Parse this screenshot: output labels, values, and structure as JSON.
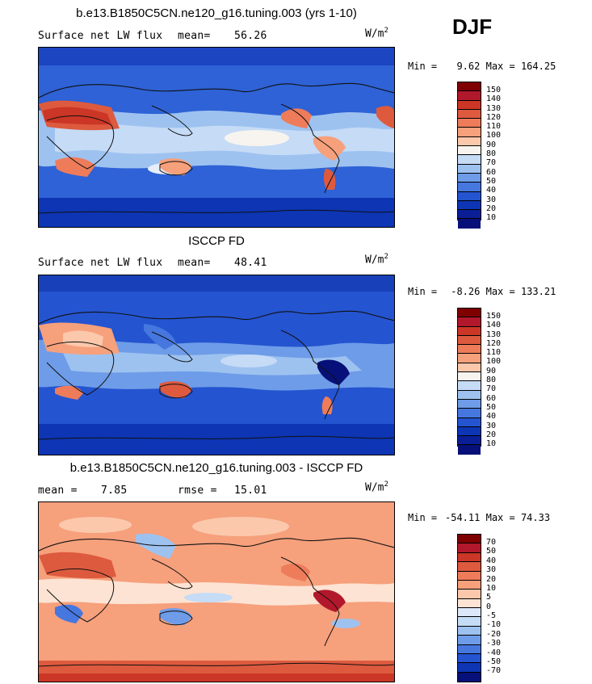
{
  "season": "DJF",
  "chart_data": [
    {
      "type": "heatmap",
      "title": "b.e13.B1850C5CN.ne120_g16.tuning.003 (yrs 1-10)",
      "subtitle": "Surface net LW flux",
      "mean_label": "mean=",
      "mean": "56.26",
      "units": "W/m",
      "units_exp": "2",
      "min_label": "Min =",
      "min": "9.62",
      "max_label": "Max =",
      "max": "164.25",
      "colorbar_ticks": [
        "150",
        "140",
        "130",
        "120",
        "110",
        "100",
        "90",
        "80",
        "70",
        "60",
        "50",
        "40",
        "30",
        "20",
        "10"
      ]
    },
    {
      "type": "heatmap",
      "title": "ISCCP FD",
      "subtitle": "Surface net LW flux",
      "mean_label": "mean=",
      "mean": "48.41",
      "units": "W/m",
      "units_exp": "2",
      "min_label": "Min =",
      "min": "-8.26",
      "max_label": "Max =",
      "max": "133.21",
      "colorbar_ticks": [
        "150",
        "140",
        "130",
        "120",
        "110",
        "100",
        "90",
        "80",
        "70",
        "60",
        "50",
        "40",
        "30",
        "20",
        "10"
      ]
    },
    {
      "type": "heatmap",
      "title": "b.e13.B1850C5CN.ne120_g16.tuning.003 - ISCCP FD",
      "mean_label": "mean =",
      "mean": "7.85",
      "rmse_label": "rmse =",
      "rmse": "15.01",
      "units": "W/m",
      "units_exp": "2",
      "min_label": "Min =",
      "min": "-54.11",
      "max_label": "Max =",
      "max": "74.33",
      "colorbar_ticks": [
        "70",
        "50",
        "40",
        "30",
        "20",
        "10",
        "5",
        "0",
        "-5",
        "-10",
        "-20",
        "-30",
        "-40",
        "-50",
        "-70"
      ]
    }
  ],
  "colors": {
    "abs": [
      "#7f0000",
      "#b2182b",
      "#cb3626",
      "#dd5a3f",
      "#ee7c5a",
      "#f6a07c",
      "#fbc8ac",
      "#f7f4ef",
      "#c5dbf6",
      "#9ec2f0",
      "#6e9ce8",
      "#4677df",
      "#2454d0",
      "#0d35b4",
      "#0a1f96",
      "#061078"
    ],
    "diff": [
      "#7f0000",
      "#b2182b",
      "#cb3626",
      "#dd5a3f",
      "#ee7c5a",
      "#f6a07c",
      "#fbc8ac",
      "#fde3d3",
      "#dce8f9",
      "#c5dbf6",
      "#9ec2f0",
      "#6e9ce8",
      "#4677df",
      "#2454d0",
      "#0d35b4",
      "#061078"
    ]
  }
}
